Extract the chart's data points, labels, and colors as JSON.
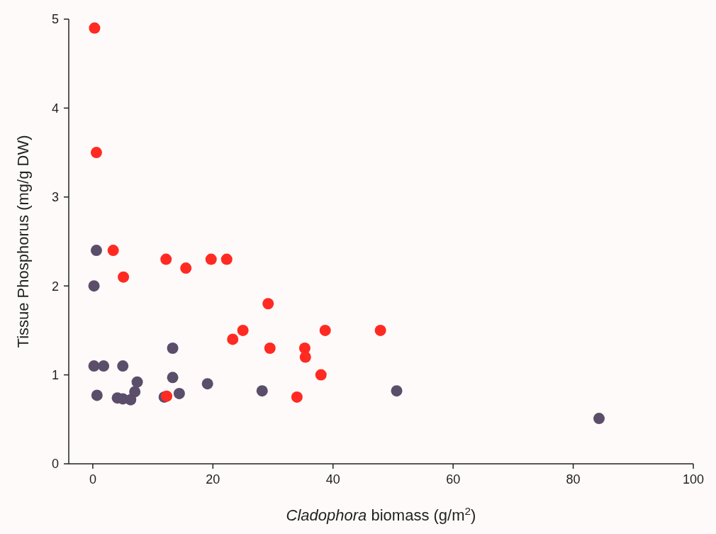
{
  "chart_data": {
    "type": "scatter",
    "xlabel": "Cladophora biomass (g/m$^{2}$)",
    "ylabel": "Tissue Phosphorus (mg/g DW)",
    "xlim": [
      -4,
      100
    ],
    "xticks": [
      0,
      20,
      40,
      60,
      80,
      100
    ],
    "ylim": [
      0,
      5
    ],
    "yticks": [
      0,
      1,
      2,
      3,
      4,
      5
    ],
    "grid": false,
    "marker": "circle",
    "series": [
      {
        "color": "#5a4e6a",
        "x": [
          0.6,
          0.2,
          0.2,
          1.8,
          5.0,
          13.3,
          0.7,
          4.1,
          5.0,
          6.3,
          7.0,
          7.4,
          11.9,
          13.3,
          14.4,
          19.1,
          28.2,
          50.6,
          84.3
        ],
        "values": [
          2.4,
          2.0,
          1.1,
          1.1,
          1.1,
          1.3,
          0.77,
          0.74,
          0.73,
          0.72,
          0.81,
          0.92,
          0.75,
          0.97,
          0.79,
          0.9,
          0.82,
          0.82,
          0.51
        ]
      },
      {
        "color": "#ff2a22",
        "x": [
          0.3,
          0.6,
          3.4,
          5.1,
          12.2,
          15.5,
          19.7,
          22.3,
          29.2,
          25.0,
          23.3,
          29.5,
          35.3,
          35.4,
          38.7,
          47.9,
          38.0,
          34.0,
          12.3
        ],
        "values": [
          4.9,
          3.5,
          2.4,
          2.1,
          2.3,
          2.2,
          2.3,
          2.3,
          1.8,
          1.5,
          1.4,
          1.3,
          1.3,
          1.2,
          1.5,
          1.5,
          1.0,
          0.75,
          0.76
        ]
      }
    ]
  }
}
